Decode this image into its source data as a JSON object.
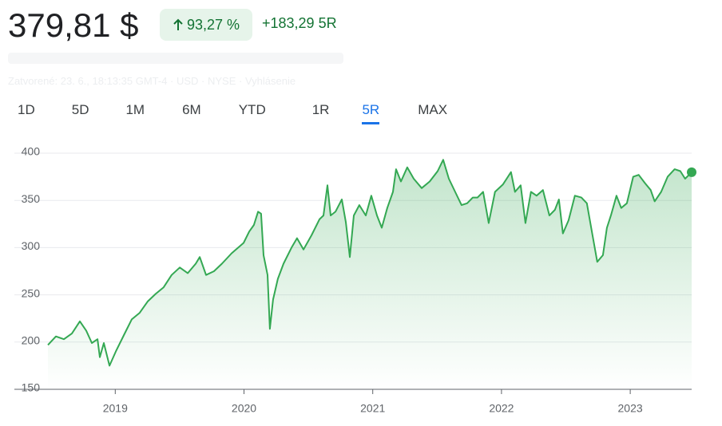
{
  "header": {
    "price": "379,81 $",
    "change_percent": "93,27 %",
    "change_value": "+183,29 5R",
    "status": "Zatvorené: 23. 6., 18:13:35 GMT-4 · USD · NYSE · Vyhlásenie"
  },
  "tabs": {
    "items": [
      "1D",
      "5D",
      "1M",
      "6M",
      "YTD",
      "1R",
      "5R",
      "MAX"
    ],
    "active": "5R"
  },
  "chart_data": {
    "type": "line",
    "color": "#34a853",
    "grid": true,
    "x": [
      2018.477,
      2018.539,
      2018.601,
      2018.663,
      2018.725,
      2018.775,
      2018.818,
      2018.862,
      2018.88,
      2018.911,
      2018.955,
      2019.004,
      2019.066,
      2019.128,
      2019.19,
      2019.252,
      2019.314,
      2019.376,
      2019.438,
      2019.501,
      2019.563,
      2019.625,
      2019.656,
      2019.705,
      2019.767,
      2019.829,
      2019.904,
      2019.997,
      2020.04,
      2020.077,
      2020.109,
      2020.133,
      2020.152,
      2020.183,
      2020.201,
      2020.226,
      2020.263,
      2020.307,
      2020.369,
      2020.412,
      2020.462,
      2020.524,
      2020.586,
      2020.617,
      2020.648,
      2020.673,
      2020.71,
      2020.76,
      2020.791,
      2020.822,
      2020.853,
      2020.896,
      2020.946,
      2020.989,
      2021.033,
      2021.07,
      2021.113,
      2021.157,
      2021.181,
      2021.219,
      2021.268,
      2021.318,
      2021.38,
      2021.442,
      2021.504,
      2021.547,
      2021.591,
      2021.64,
      2021.69,
      2021.733,
      2021.777,
      2021.814,
      2021.857,
      2021.901,
      2021.95,
      2022.012,
      2022.074,
      2022.105,
      2022.149,
      2022.186,
      2022.229,
      2022.273,
      2022.322,
      2022.372,
      2022.415,
      2022.446,
      2022.477,
      2022.521,
      2022.57,
      2022.62,
      2022.663,
      2022.707,
      2022.744,
      2022.788,
      2022.819,
      2022.85,
      2022.893,
      2022.93,
      2022.974,
      2023.023,
      2023.066,
      2023.116,
      2023.159,
      2023.19,
      2023.24,
      2023.29,
      2023.345,
      2023.389,
      2023.426,
      2023.477
    ],
    "values": [
      197,
      206,
      203,
      209,
      222,
      212,
      199,
      203,
      184,
      199,
      175,
      190,
      207,
      224,
      231,
      243,
      251,
      258,
      271,
      279,
      273,
      283,
      290,
      271,
      275,
      283,
      294,
      305,
      317,
      324,
      338,
      336,
      292,
      271,
      214,
      245,
      267,
      283,
      300,
      310,
      298,
      313,
      330,
      334,
      366,
      334,
      338,
      351,
      327,
      290,
      334,
      345,
      334,
      355,
      334,
      321,
      342,
      359,
      383,
      370,
      385,
      373,
      363,
      370,
      381,
      393,
      373,
      359,
      345,
      347,
      353,
      353,
      359,
      326,
      359,
      367,
      380,
      359,
      366,
      326,
      359,
      355,
      361,
      334,
      340,
      351,
      315,
      329,
      355,
      353,
      347,
      313,
      285,
      292,
      321,
      334,
      355,
      342,
      347,
      375,
      377,
      368,
      361,
      349,
      359,
      375,
      383,
      381,
      373,
      379.81
    ],
    "xlim": [
      2018.477,
      2023.477
    ],
    "xticks": [
      2019,
      2020,
      2021,
      2022,
      2023
    ],
    "ylim": [
      150,
      400
    ],
    "yticks": [
      150,
      200,
      250,
      300,
      350,
      400
    ]
  }
}
